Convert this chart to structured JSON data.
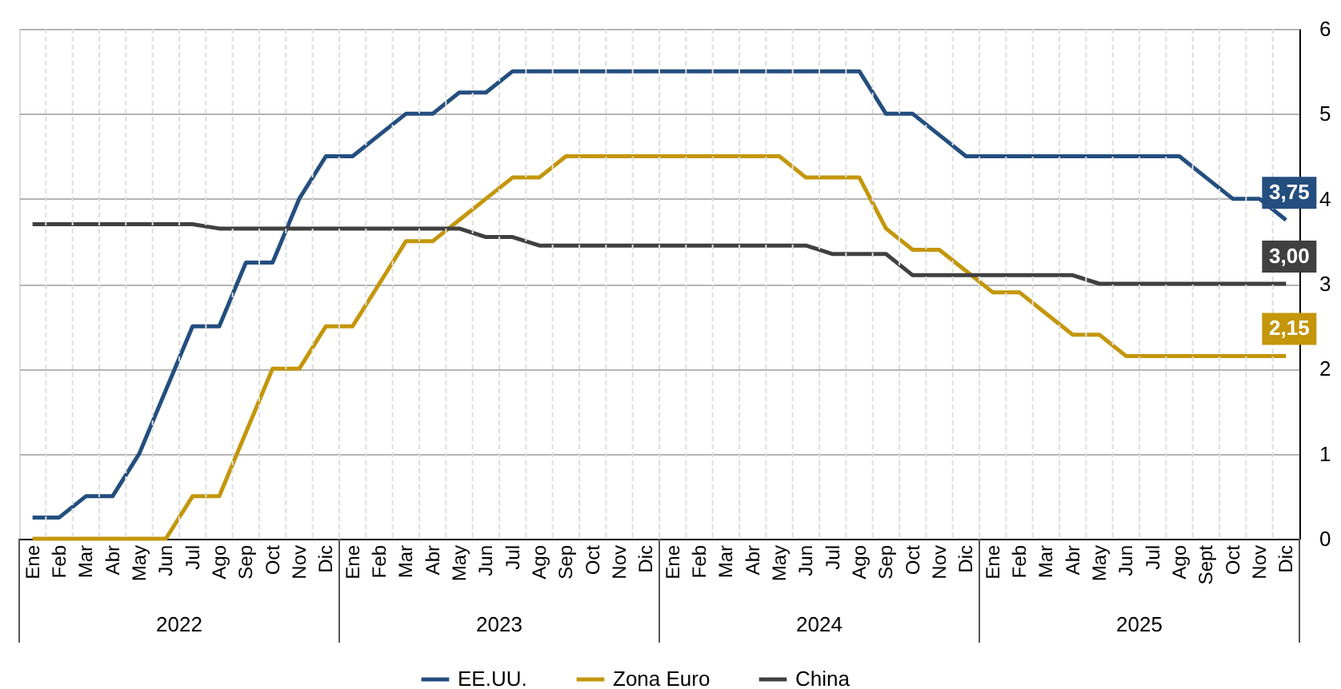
{
  "chart_data": {
    "type": "line",
    "categories": [
      "Ene",
      "Feb",
      "Mar",
      "Abr",
      "May",
      "Jun",
      "Jul",
      "Ago",
      "Sep",
      "Oct",
      "Nov",
      "Dic",
      "Ene",
      "Feb",
      "Mar",
      "Abr",
      "May",
      "Jun",
      "Jul",
      "Ago",
      "Sep",
      "Oct",
      "Nov",
      "Dic",
      "Ene",
      "Feb",
      "Mar",
      "Abr",
      "May",
      "Jun",
      "Jul",
      "Ago",
      "Sep",
      "Oct",
      "Nov",
      "Dic",
      "Ene",
      "Feb",
      "Mar",
      "Abr",
      "May",
      "Jun",
      "Jul",
      "Ago",
      "Sept",
      "Oct",
      "Nov",
      "Dic"
    ],
    "series": [
      {
        "name": "EE.UU.",
        "color": "#234e7f",
        "values": [
          0.25,
          0.25,
          0.5,
          0.5,
          1.0,
          1.75,
          2.5,
          2.5,
          3.25,
          3.25,
          4.0,
          4.5,
          4.5,
          4.75,
          5.0,
          5.0,
          5.25,
          5.25,
          5.5,
          5.5,
          5.5,
          5.5,
          5.5,
          5.5,
          5.5,
          5.5,
          5.5,
          5.5,
          5.5,
          5.5,
          5.5,
          5.5,
          5.0,
          5.0,
          4.75,
          4.5,
          4.5,
          4.5,
          4.5,
          4.5,
          4.5,
          4.5,
          4.5,
          4.5,
          4.25,
          4.0,
          4.0,
          3.75
        ],
        "value_labels": [
          null,
          null,
          null,
          null,
          null,
          null,
          null,
          null,
          null,
          null,
          null,
          null,
          null,
          null,
          null,
          null,
          null,
          null,
          null,
          null,
          null,
          null,
          null,
          null,
          null,
          null,
          null,
          null,
          null,
          null,
          null,
          null,
          null,
          null,
          null,
          null,
          null,
          null,
          null,
          null,
          null,
          null,
          null,
          null,
          null,
          null,
          null,
          "3,75"
        ]
      },
      {
        "name": "Zona Euro",
        "color": "#c4960a",
        "values": [
          0,
          0,
          0,
          0,
          0,
          0,
          0.5,
          0.5,
          1.25,
          2.0,
          2.0,
          2.5,
          2.5,
          3.0,
          3.5,
          3.5,
          3.75,
          4.0,
          4.25,
          4.25,
          4.5,
          4.5,
          4.5,
          4.5,
          4.5,
          4.5,
          4.5,
          4.5,
          4.5,
          4.25,
          4.25,
          4.25,
          3.65,
          3.4,
          3.4,
          3.15,
          2.9,
          2.9,
          2.65,
          2.4,
          2.4,
          2.15,
          2.15,
          2.15,
          2.15,
          2.15,
          2.15,
          2.15
        ],
        "value_labels": [
          null,
          null,
          null,
          null,
          null,
          null,
          null,
          null,
          null,
          null,
          null,
          null,
          null,
          null,
          null,
          null,
          null,
          null,
          null,
          null,
          null,
          null,
          null,
          null,
          null,
          null,
          null,
          null,
          null,
          null,
          null,
          null,
          null,
          null,
          null,
          null,
          null,
          null,
          null,
          null,
          null,
          null,
          null,
          null,
          null,
          null,
          null,
          "2,15"
        ]
      },
      {
        "name": "China",
        "color": "#404040",
        "values": [
          3.7,
          3.7,
          3.7,
          3.7,
          3.7,
          3.7,
          3.7,
          3.65,
          3.65,
          3.65,
          3.65,
          3.65,
          3.65,
          3.65,
          3.65,
          3.65,
          3.65,
          3.55,
          3.55,
          3.45,
          3.45,
          3.45,
          3.45,
          3.45,
          3.45,
          3.45,
          3.45,
          3.45,
          3.45,
          3.45,
          3.35,
          3.35,
          3.35,
          3.1,
          3.1,
          3.1,
          3.1,
          3.1,
          3.1,
          3.1,
          3.0,
          3.0,
          3.0,
          3.0,
          3.0,
          3.0,
          3.0,
          3.0
        ],
        "value_labels": [
          null,
          null,
          null,
          null,
          null,
          null,
          null,
          null,
          null,
          null,
          null,
          null,
          null,
          null,
          null,
          null,
          null,
          null,
          null,
          null,
          null,
          null,
          null,
          null,
          null,
          null,
          null,
          null,
          null,
          null,
          null,
          null,
          null,
          null,
          null,
          null,
          null,
          null,
          null,
          null,
          null,
          null,
          null,
          null,
          null,
          null,
          null,
          "3,00"
        ]
      }
    ],
    "annotations": [
      "2022",
      "2023",
      "2024",
      "2025"
    ],
    "ylim": [
      0,
      6
    ],
    "yticks": [
      0,
      1,
      2,
      3,
      4,
      5,
      6
    ],
    "grid": true,
    "legend": "bottom"
  }
}
